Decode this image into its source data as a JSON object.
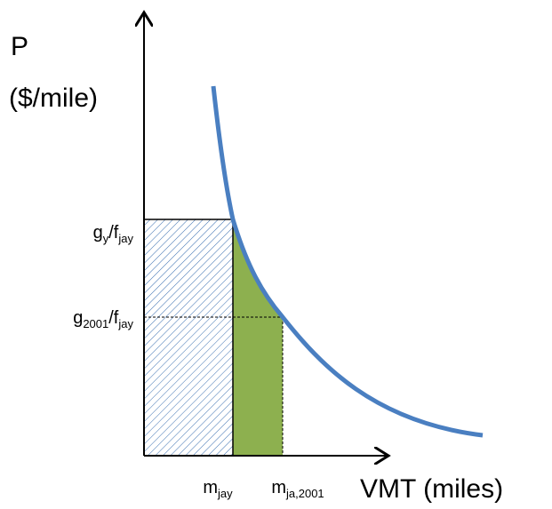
{
  "y_axis_label": [
    "P",
    "($/mile)"
  ],
  "x_axis_label": "VMT (miles)",
  "y_ticks": [
    {
      "base": "g",
      "sub": "y",
      "base2": "/f",
      "sub2": "jay"
    },
    {
      "base": "g",
      "sub": "2001",
      "base2": "/f",
      "sub2": "jay"
    }
  ],
  "x_ticks": [
    {
      "base": "m",
      "sub": "jay"
    },
    {
      "base": "m",
      "sub": "ja,2001"
    }
  ]
}
